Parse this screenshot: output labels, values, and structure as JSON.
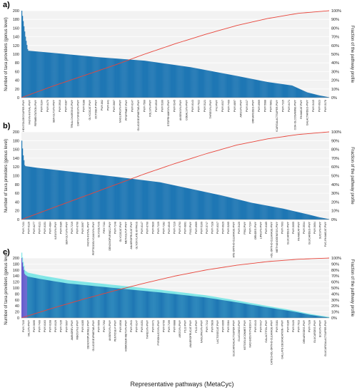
{
  "figure": {
    "xlabel": "Representative pathways (MetaCyc)",
    "colors": {
      "bars": "#1f77b4",
      "bars_alt": "#6a5acd",
      "highlight": "#7fe6e6",
      "cumulative": "#e8443a",
      "plot_bg": "#f2f2f2",
      "grid": "#ffffff",
      "text": "#222222"
    }
  },
  "chart_data": [
    {
      "panel_label": "a)",
      "type": "bar",
      "ylabel": "Number of taxa providers (genus level)",
      "y2label": "Fraction of the pathway profile",
      "ylim": [
        0,
        200
      ],
      "yticks": [
        0,
        20,
        40,
        60,
        80,
        100,
        120,
        140,
        160,
        180,
        200
      ],
      "y2ticks": [
        "0%",
        "10%",
        "20%",
        "30%",
        "40%",
        "50%",
        "60%",
        "70%",
        "80%",
        "90%",
        "100%"
      ],
      "bar_count": 420,
      "bar_profile": [
        [
          0,
          200
        ],
        [
          0.005,
          175
        ],
        [
          0.012,
          140
        ],
        [
          0.02,
          108
        ],
        [
          0.1,
          103
        ],
        [
          0.25,
          93
        ],
        [
          0.4,
          85
        ],
        [
          0.55,
          70
        ],
        [
          0.7,
          50
        ],
        [
          0.8,
          36
        ],
        [
          0.88,
          28
        ],
        [
          0.93,
          12
        ],
        [
          0.97,
          5
        ],
        [
          1,
          1
        ]
      ],
      "cumulative_profile": [
        [
          0,
          0
        ],
        [
          0.1,
          0.13
        ],
        [
          0.2,
          0.25
        ],
        [
          0.3,
          0.37
        ],
        [
          0.4,
          0.5
        ],
        [
          0.5,
          0.62
        ],
        [
          0.6,
          0.73
        ],
        [
          0.7,
          0.83
        ],
        [
          0.8,
          0.91
        ],
        [
          0.9,
          0.97
        ],
        [
          1,
          1
        ]
      ],
      "highlight": false,
      "tick_labels": [
        "HEXITOLDEGSUPER-PWY",
        "FASYN-INITIAL-PWY",
        "FERMENTATION-PWY",
        "PWY-5104",
        "PWY-6470",
        "SER-GLYSYN-PWY",
        "PWY-5910",
        "PWY-6387",
        "TRNA-CHARGING-PWY",
        "DAPLYSINESYN-PWY",
        "PWY-5188",
        "GLYCOCAT-PWY",
        "OCTOBUT-PWY",
        "PWY-862",
        "PWY-841",
        "PWY-5667",
        "NAGLIPASYN-PWY",
        "PPGPPMET-PWY",
        "PWY-6147",
        "GLUCOSE1PMETAB-PWY",
        "PWY-7560",
        "FOLSYN-PWY",
        "PWY-6519",
        "PWY-5100",
        "DTDPRHAMSYN-PWY",
        "PWY-5345",
        "ANSENSYN-PWY",
        "COBALSYN-PWY",
        "PWY-6143",
        "PWY-7022",
        "PWY-5121",
        "THRESYN-PWY",
        "P42-PWY",
        "PWY-6317",
        "PWY-7409",
        "PWY-6897",
        "ARGSYN-PWY",
        "PWY-6417",
        "ORNARGDEG-PWY",
        "PWY-6969",
        "PWY-5088",
        "PWY-5861",
        "GLUCARGALACTSUPER-PWY",
        "PWY-7315",
        "PWY-6471",
        "COA-GLCOSAMINE-PWY",
        "RHAMCAT-PWY",
        "GALACTARDEG-PWY",
        "PWY-5415",
        "PWY-6923",
        "PWY-5178"
      ]
    },
    {
      "panel_label": "b)",
      "type": "bar",
      "ylabel": "Number of taxa providers (genus level)",
      "y2label": "Fraction of the pathway profile",
      "ylim": [
        0,
        200
      ],
      "yticks": [
        0,
        20,
        40,
        60,
        80,
        100,
        120,
        140,
        160,
        180,
        200
      ],
      "y2ticks": [
        "0%",
        "10%",
        "20%",
        "30%",
        "40%",
        "50%",
        "60%",
        "70%",
        "80%",
        "90%",
        "100%"
      ],
      "bar_count": 420,
      "bar_profile": [
        [
          0,
          180
        ],
        [
          0.004,
          150
        ],
        [
          0.01,
          122
        ],
        [
          0.05,
          118
        ],
        [
          0.15,
          110
        ],
        [
          0.3,
          98
        ],
        [
          0.45,
          85
        ],
        [
          0.55,
          70
        ],
        [
          0.65,
          55
        ],
        [
          0.75,
          38
        ],
        [
          0.85,
          25
        ],
        [
          0.93,
          12
        ],
        [
          0.97,
          5
        ],
        [
          1,
          1
        ]
      ],
      "cumulative_profile": [
        [
          0,
          0
        ],
        [
          0.1,
          0.13
        ],
        [
          0.2,
          0.26
        ],
        [
          0.3,
          0.39
        ],
        [
          0.4,
          0.52
        ],
        [
          0.5,
          0.64
        ],
        [
          0.6,
          0.75
        ],
        [
          0.7,
          0.85
        ],
        [
          0.8,
          0.92
        ],
        [
          0.9,
          0.97
        ],
        [
          1,
          1
        ]
      ],
      "highlight": false,
      "tick_labels": [
        "PWY-7431",
        "PWY-6126",
        "PWY-6277",
        "PWY-6121",
        "PWY-6151",
        "PWY-4684",
        "ILEUSYN-PWY",
        "PWY-5385",
        "SER-GLYSYN-PWY",
        "PWY-7219",
        "PWY-6700",
        "PWY-5097",
        "FASYN-INITIAL-PWY",
        "PEPTIDOGLYCANSYN-PWY",
        "GLYCOLYSIS",
        "PWY-7111",
        "DENOVOPURINE2-PWY",
        "PWY-7248",
        "GLYCOCAT-PWY",
        "METHGLYUT-PWY",
        "ANAEROFRUCAT-PWY",
        "GLYOXYLATE-BYPASS",
        "PWY-6147",
        "PWY-6700",
        "PWY-5830",
        "PWY-7229",
        "PWY-7282",
        "PWY-6545",
        "PWY-7219",
        "PWY-6703",
        "PWY-6891",
        "P162-PWY",
        "PWY-6969",
        "PWY-5109",
        "PWY-5747",
        "PWY-7328",
        "PWY-6317",
        "PWY-6629",
        "PWY-5265",
        "PROTOCATECHUATE-ORTHO-CLEAVAGE-PWY",
        "PWY-5420",
        "P562-PWY",
        "PWY-7234",
        "ORNDEG-PWY",
        "LIPASYN-PWY",
        "PWY-6185",
        "CATECHOL-ORTHO-CLEAVAGE-PWY",
        "METHANOGENESIS-PWY",
        "PWY-7003",
        "GLUCARDEG-PWY",
        "PWY-5055",
        "RHAMCAT-PWY",
        "PWY-5534",
        "GLUCARDEG-PWY",
        "PWY-5654",
        "SUCSYN-PWY",
        "FUC-RHAMCAT-PWY"
      ]
    },
    {
      "panel_label": "c)",
      "type": "bar",
      "ylabel": "Number of taxa providers (genus level)",
      "y2label": "Fraction of the pathway profile",
      "ylim": [
        0,
        200
      ],
      "yticks": [
        0,
        20,
        40,
        60,
        80,
        100,
        120,
        140,
        160,
        180,
        200
      ],
      "y2ticks": [
        "0%",
        "10%",
        "20%",
        "30%",
        "40%",
        "50%",
        "60%",
        "70%",
        "80%",
        "90%",
        "100%"
      ],
      "bar_count": 420,
      "bar_profile": [
        [
          0,
          200
        ],
        [
          0.004,
          175
        ],
        [
          0.01,
          145
        ],
        [
          0.02,
          138
        ],
        [
          0.06,
          130
        ],
        [
          0.15,
          115
        ],
        [
          0.3,
          100
        ],
        [
          0.45,
          85
        ],
        [
          0.6,
          68
        ],
        [
          0.7,
          52
        ],
        [
          0.8,
          35
        ],
        [
          0.88,
          22
        ],
        [
          0.94,
          10
        ],
        [
          0.98,
          4
        ],
        [
          1,
          1
        ]
      ],
      "cumulative_profile": [
        [
          0,
          0
        ],
        [
          0.1,
          0.16
        ],
        [
          0.2,
          0.31
        ],
        [
          0.3,
          0.45
        ],
        [
          0.4,
          0.58
        ],
        [
          0.5,
          0.7
        ],
        [
          0.6,
          0.8
        ],
        [
          0.7,
          0.88
        ],
        [
          0.8,
          0.94
        ],
        [
          0.9,
          0.98
        ],
        [
          1,
          1
        ]
      ],
      "highlight": true,
      "tick_labels": [
        "PWY-7315",
        "VALSYN-PWY",
        "PWY-5695",
        "PWY-7400",
        "PWY-6163",
        "PWY-6168",
        "PWY-6126",
        "PWY-7235",
        "PWY-5097",
        "AMINOREV-PWY",
        "RIBOSYN2-PWY",
        "PWY-6285",
        "DENOVOPURINE2-PWY",
        "GLUCOSE1PMETAB-PWY",
        "PWY-5659",
        "PWY-7392",
        "ANSENSYN-PWY",
        "PENTOSE-P-PWY",
        "PWY-6936",
        "HOMOSER-METSYN-PWY",
        "PWY-2941",
        "PWY-6147",
        "PWY-6151",
        "THRESYN-PWY",
        "PWY-6471",
        "PYRIDNUCSYN-PWY",
        "PWY-6700",
        "PWY-7199",
        "PWY-6888",
        "ARGSYN-PWY",
        "P122-PWY",
        "ANAEROFRUCAT-PWY",
        "P122-PWY",
        "NAGLIPASYN-PWY",
        "PWY-7242",
        "PWY-5839",
        "LACTOSECAT-PWY",
        "PWY-6995",
        "PWY-5384",
        "GLUCARGALACTSUPER-PWY",
        "GLUCONEO-PWY",
        "KETOGLUCONMET-PWY",
        "NAD-BIOSYNTHESIS-II",
        "PWY-6143",
        "PWY-5417",
        "GALACTITOL-PWY",
        "CATECHOL-ORTHO-CLEAVAGE-PWY",
        "PWY-5181",
        "GALLATE-DEGRADATION-I-PWY",
        "PWY-6185",
        "PWY-5420",
        "PWY-7013",
        "ORNARGDEG-PWY",
        "PWY-7328",
        "GLUCARDEG-PWY",
        "ECASYN-PWY",
        "GLUCARGALACTSUPER-PWY"
      ]
    }
  ]
}
